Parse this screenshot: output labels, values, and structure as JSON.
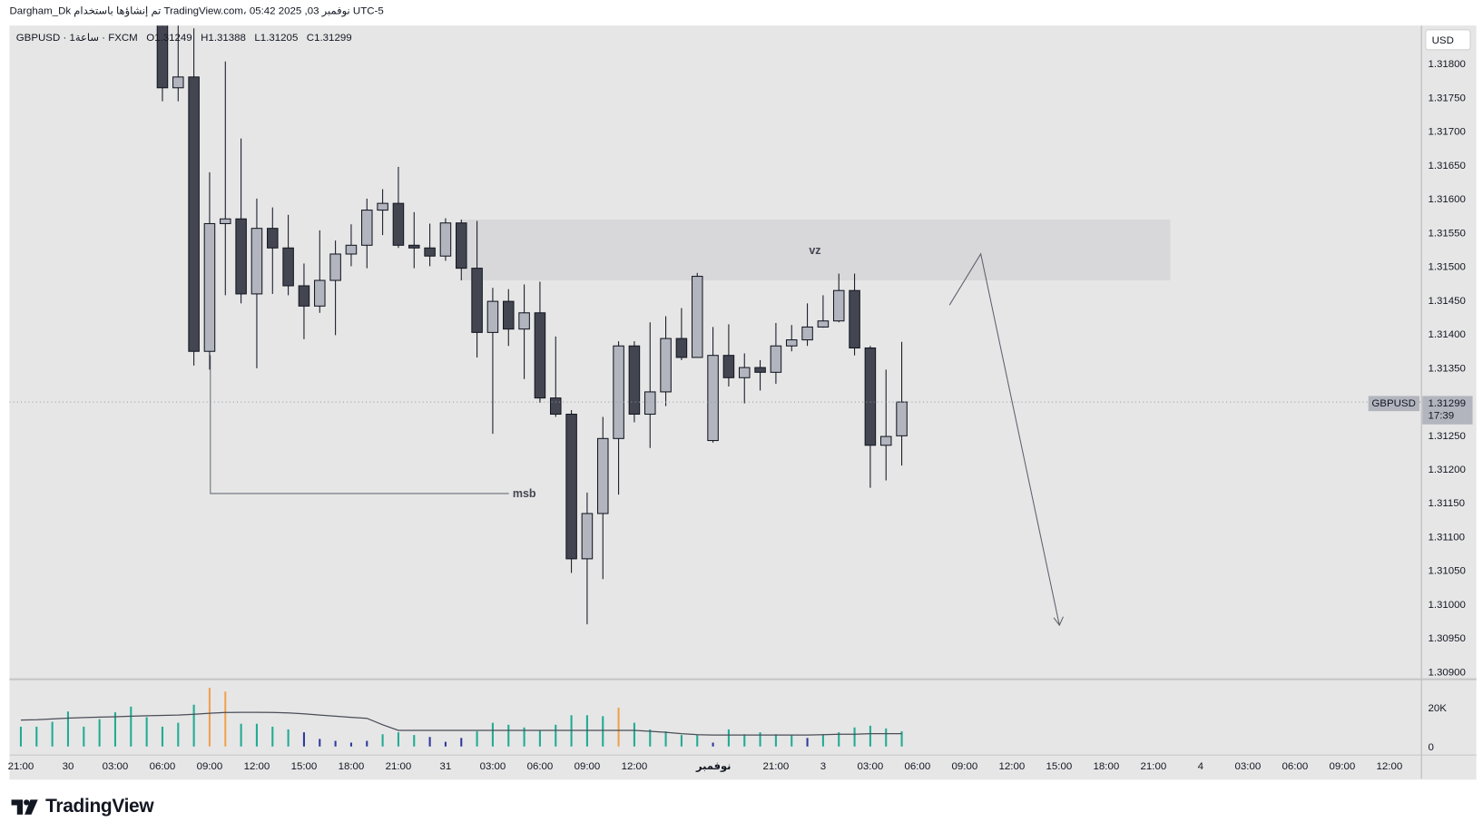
{
  "header": {
    "text": "Dargham_Dk تم إنشاؤها باستخدام TradingView.com، 05:42 2025 ,03 نوفمبر UTC-5"
  },
  "legend": {
    "symbol": "GBPUSD · 1ساعة · FXCM",
    "open": "O1.31249",
    "high": "H1.31388",
    "low": "L1.31205",
    "close": "C1.31299"
  },
  "price_scale": {
    "currency": "USD",
    "ticks": [
      "1.31800",
      "1.31750",
      "1.31700",
      "1.31650",
      "1.31600",
      "1.31550",
      "1.31500",
      "1.31450",
      "1.31400",
      "1.31350",
      "1.31300",
      "1.31250",
      "1.31200",
      "1.31150",
      "1.31100",
      "1.31050",
      "1.31000",
      "1.30950",
      "1.30900"
    ],
    "current_symbol": "GBPUSD",
    "current_price": "1.31299",
    "countdown": "17:39"
  },
  "volume_scale": {
    "ticks": [
      "20K",
      "0"
    ]
  },
  "time_axis": {
    "labels": [
      "21:00",
      "30",
      "03:00",
      "06:00",
      "09:00",
      "12:00",
      "15:00",
      "18:00",
      "21:00",
      "31",
      "03:00",
      "06:00",
      "09:00",
      "12:00",
      "نوفمبر",
      "21:00",
      "3",
      "03:00",
      "06:00",
      "09:00",
      "12:00",
      "15:00",
      "18:00",
      "21:00",
      "4",
      "03:00",
      "06:00",
      "09:00",
      "12:00"
    ]
  },
  "colors": {
    "bull": "#b2b5be",
    "bear": "#434651",
    "vol_normal": "#22ab94",
    "vol_high": "#f0a24f",
    "vol_low": "#2f3a9c",
    "zone": "#d8d8da",
    "pane": "#e6e6e6"
  },
  "annotations": {
    "zone_label": "vz",
    "msb_label": "msb",
    "zone_top": 1.31569,
    "zone_bottom": 1.31479,
    "msb_level": 1.31165
  },
  "chart_data": {
    "type": "candlestick",
    "symbol": "GBPUSD",
    "interval": "1h",
    "first_candle_slot": 9,
    "ohlc": [
      [
        1.31866,
        1.31894,
        1.31744,
        1.31764
      ],
      [
        1.31764,
        1.3186,
        1.31744,
        1.3178
      ],
      [
        1.3178,
        1.31852,
        1.31353,
        1.31374
      ],
      [
        1.31374,
        1.31639,
        1.31347,
        1.31563
      ],
      [
        1.31563,
        1.31803,
        1.31457,
        1.3157
      ],
      [
        1.3157,
        1.31689,
        1.31445,
        1.31459
      ],
      [
        1.31459,
        1.316,
        1.31349,
        1.31556
      ],
      [
        1.31556,
        1.31587,
        1.31459,
        1.31527
      ],
      [
        1.31527,
        1.31576,
        1.31457,
        1.31471
      ],
      [
        1.31471,
        1.31504,
        1.31392,
        1.31441
      ],
      [
        1.31441,
        1.31553,
        1.31431,
        1.31479
      ],
      [
        1.31479,
        1.31538,
        1.31398,
        1.31518
      ],
      [
        1.31518,
        1.31562,
        1.315,
        1.31531
      ],
      [
        1.31531,
        1.316,
        1.31497,
        1.31583
      ],
      [
        1.31583,
        1.31614,
        1.31546,
        1.31593
      ],
      [
        1.31593,
        1.31647,
        1.31527,
        1.31531
      ],
      [
        1.31531,
        1.3158,
        1.31497,
        1.31527
      ],
      [
        1.31527,
        1.31563,
        1.315,
        1.31515
      ],
      [
        1.31515,
        1.31571,
        1.31508,
        1.31564
      ],
      [
        1.31564,
        1.31569,
        1.31479,
        1.31497
      ],
      [
        1.31497,
        1.31567,
        1.31365,
        1.31402
      ],
      [
        1.31402,
        1.31468,
        1.31252,
        1.31448
      ],
      [
        1.31448,
        1.31466,
        1.31382,
        1.31407
      ],
      [
        1.31407,
        1.31473,
        1.31333,
        1.31431
      ],
      [
        1.31431,
        1.31477,
        1.31298,
        1.31305
      ],
      [
        1.31305,
        1.31396,
        1.31277,
        1.31281
      ],
      [
        1.31281,
        1.31287,
        1.31046,
        1.31067
      ],
      [
        1.31067,
        1.31165,
        1.3097,
        1.31134
      ],
      [
        1.31134,
        1.31277,
        1.31037,
        1.31245
      ],
      [
        1.31245,
        1.31389,
        1.31162,
        1.31382
      ],
      [
        1.31382,
        1.31389,
        1.31269,
        1.31281
      ],
      [
        1.31281,
        1.31417,
        1.31231,
        1.31314
      ],
      [
        1.31314,
        1.31426,
        1.31293,
        1.31393
      ],
      [
        1.31393,
        1.31438,
        1.31361,
        1.31365
      ],
      [
        1.31365,
        1.3149,
        1.31365,
        1.31485
      ],
      [
        1.31242,
        1.3141,
        1.31239,
        1.31368
      ],
      [
        1.31368,
        1.31414,
        1.31322,
        1.31335
      ],
      [
        1.31335,
        1.31371,
        1.31297,
        1.3135
      ],
      [
        1.3135,
        1.31361,
        1.31316,
        1.31343
      ],
      [
        1.31343,
        1.31416,
        1.31326,
        1.31382
      ],
      [
        1.31382,
        1.31413,
        1.31374,
        1.31391
      ],
      [
        1.31391,
        1.31445,
        1.31382,
        1.3141
      ],
      [
        1.3141,
        1.31457,
        1.31409,
        1.31419
      ],
      [
        1.31419,
        1.31489,
        1.31417,
        1.31464
      ],
      [
        1.31464,
        1.31489,
        1.31368,
        1.31379
      ],
      [
        1.31379,
        1.31382,
        1.31172,
        1.31235
      ],
      [
        1.31235,
        1.31347,
        1.31183,
        1.31248
      ],
      [
        1.31249,
        1.31388,
        1.31205,
        1.31299
      ]
    ],
    "volume": [
      10200,
      10200,
      12700,
      18000,
      10200,
      14100,
      17600,
      20500,
      15100,
      10200,
      12200,
      21500,
      30200,
      28300,
      11700,
      11700,
      10200,
      8800,
      7300,
      3900,
      2900,
      2000,
      2900,
      6300,
      7300,
      5900,
      4900,
      2400,
      4400,
      7800,
      12200,
      11200,
      9800,
      8300,
      11200,
      16100,
      16100,
      15600,
      20000,
      12200,
      8800,
      7800,
      5900,
      5900,
      2000,
      8800,
      6300,
      7300,
      6300,
      5900,
      4400,
      6300,
      7300,
      9800,
      10700,
      9300,
      7800
    ],
    "volume_color": [
      "n",
      "n",
      "n",
      "n",
      "n",
      "n",
      "n",
      "n",
      "n",
      "n",
      "n",
      "n",
      "h",
      "h",
      "n",
      "n",
      "n",
      "n",
      "l",
      "l",
      "l",
      "l",
      "l",
      "n",
      "n",
      "n",
      "l",
      "l",
      "l",
      "n",
      "n",
      "n",
      "n",
      "n",
      "n",
      "n",
      "n",
      "n",
      "h",
      "n",
      "n",
      "n",
      "n",
      "n",
      "l",
      "n",
      "n",
      "n",
      "n",
      "n",
      "l",
      "n",
      "n",
      "n",
      "n",
      "n",
      "n"
    ],
    "volume_ma": [
      13600,
      13800,
      14200,
      14600,
      14900,
      15100,
      15300,
      15600,
      15800,
      16000,
      16200,
      16600,
      17100,
      17500,
      17600,
      17600,
      17500,
      17300,
      16800,
      16200,
      15600,
      15000,
      14500,
      11200,
      8300,
      8300,
      8300,
      8300,
      8300,
      8300,
      8300,
      8300,
      8300,
      8300,
      8300,
      8300,
      8300,
      8300,
      8300,
      8300,
      7800,
      7300,
      6600,
      6100,
      5900,
      5900,
      5900,
      5900,
      5900,
      5900,
      5900,
      6100,
      6300,
      6300,
      6600,
      6600,
      6600
    ],
    "ylim": [
      1.309,
      1.318
    ]
  },
  "branding": {
    "logo": "TradingView"
  }
}
